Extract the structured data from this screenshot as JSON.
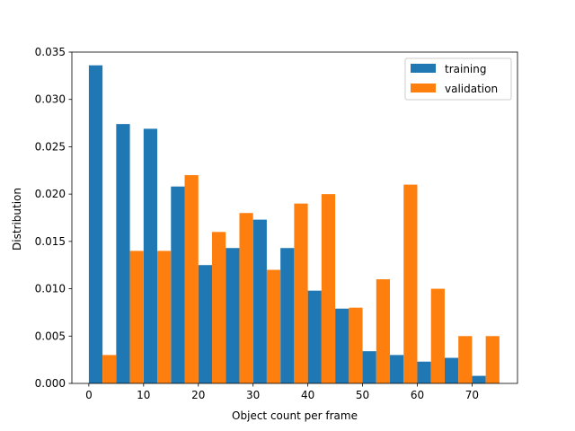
{
  "chart_data": {
    "type": "bar",
    "title": "",
    "xlabel": "Object count per frame",
    "ylabel": "Distribution",
    "xlim": [
      -3.1,
      78.3
    ],
    "ylim": [
      0,
      0.035
    ],
    "x_ticks": [
      0,
      10,
      20,
      30,
      40,
      50,
      60,
      70
    ],
    "y_ticks": [
      0.0,
      0.005,
      0.01,
      0.015,
      0.02,
      0.025,
      0.03,
      0.035
    ],
    "x_tick_labels": [
      "0",
      "10",
      "20",
      "30",
      "40",
      "50",
      "60",
      "70"
    ],
    "y_tick_labels": [
      "0.000",
      "0.005",
      "0.010",
      "0.015",
      "0.020",
      "0.025",
      "0.030",
      "0.035"
    ],
    "bin_edges": [
      0,
      5,
      10,
      15,
      20,
      25,
      30,
      35,
      40,
      45,
      50,
      55,
      60,
      65,
      70,
      75
    ],
    "grid": false,
    "legend_position": "top-right",
    "series": [
      {
        "name": "training",
        "color": "#1f77b4",
        "values": [
          0.0336,
          0.0274,
          0.0269,
          0.0208,
          0.0125,
          0.0143,
          0.0173,
          0.0143,
          0.0098,
          0.0079,
          0.0034,
          0.003,
          0.0023,
          0.0027,
          0.0008
        ]
      },
      {
        "name": "validation",
        "color": "#ff7f0e",
        "values": [
          0.003,
          0.014,
          0.014,
          0.022,
          0.016,
          0.018,
          0.012,
          0.019,
          0.02,
          0.008,
          0.011,
          0.021,
          0.01,
          0.005,
          0.005
        ]
      }
    ]
  }
}
